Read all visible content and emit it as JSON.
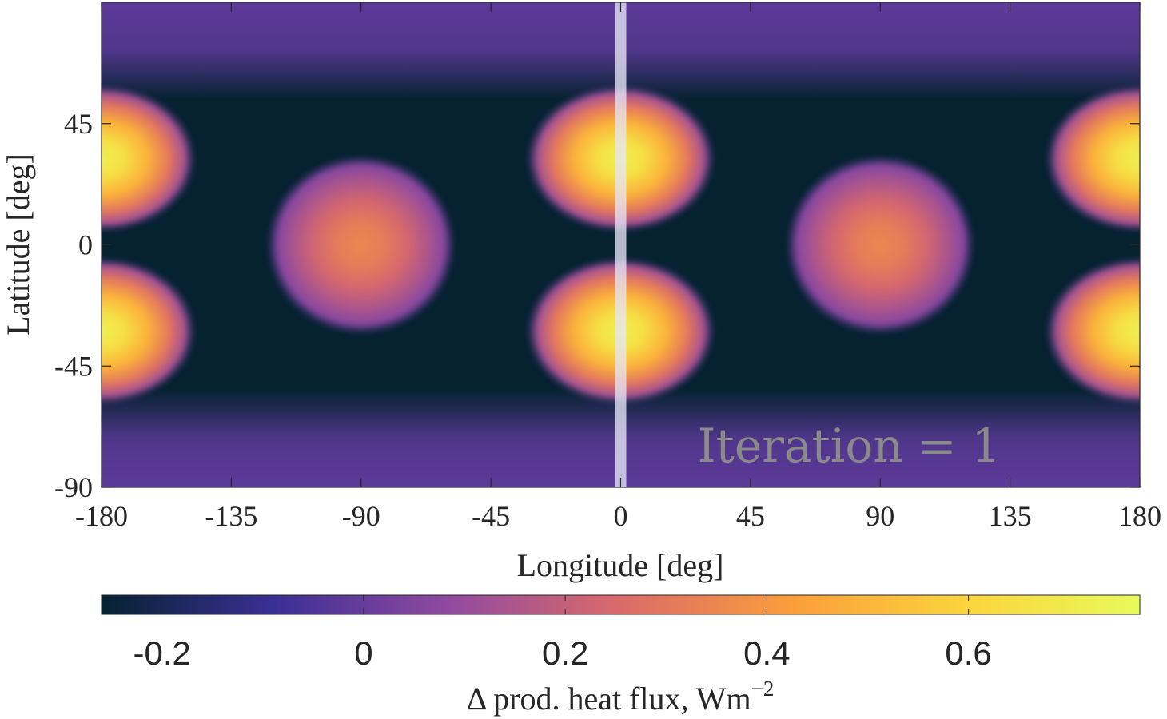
{
  "chart_data": {
    "type": "heatmap",
    "title": "",
    "xlabel": "Longitude [deg]",
    "ylabel": "Latitude [deg]",
    "xlim": [
      -180,
      180
    ],
    "ylim": [
      -90,
      90
    ],
    "x_ticks": [
      -180,
      -135,
      -90,
      -45,
      0,
      45,
      90,
      135,
      180
    ],
    "y_ticks": [
      -90,
      -45,
      0,
      45
    ],
    "annotation": "Iteration = 1",
    "highlight_longitude": 0,
    "grid": false,
    "features": [
      {
        "lon": 0,
        "lat": 32,
        "value": 0.72
      },
      {
        "lon": 0,
        "lat": -32,
        "value": 0.72
      },
      {
        "lon": 180,
        "lat": 32,
        "value": 0.72
      },
      {
        "lon": 180,
        "lat": -32,
        "value": 0.72
      },
      {
        "lon": -180,
        "lat": 32,
        "value": 0.72
      },
      {
        "lon": -180,
        "lat": -32,
        "value": 0.72
      },
      {
        "lon": -90,
        "lat": 0,
        "value": 0.35
      },
      {
        "lon": 90,
        "lat": 0,
        "value": 0.35
      }
    ],
    "background_min": -0.25,
    "colorbar": {
      "label_prefix": "Δ prod. heat flux, Wm",
      "label_exponent": "−2",
      "min": -0.26,
      "max": 0.77,
      "ticks": [
        -0.2,
        0,
        0.2,
        0.4,
        0.6
      ],
      "tick_labels": [
        "-0.2",
        "0",
        "0.2",
        "0.4",
        "0.6"
      ],
      "colors": [
        "#062231",
        "#3b2f96",
        "#904aa0",
        "#db6a6a",
        "#fb9e3a",
        "#fbd43e",
        "#e8fa5b"
      ]
    }
  }
}
